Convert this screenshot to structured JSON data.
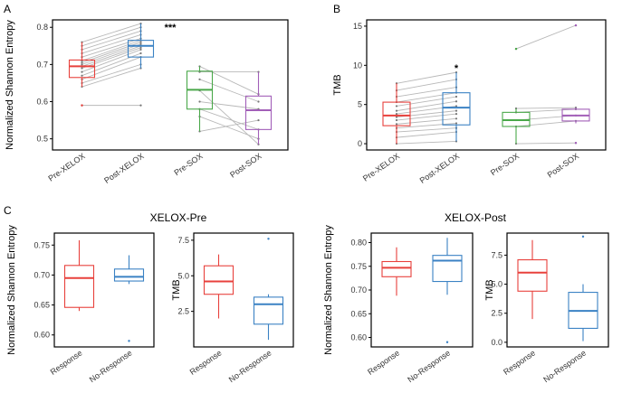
{
  "panel_letters": {
    "a": "A",
    "b": "B",
    "c": "C"
  },
  "colors": {
    "pre_xelox": "#e8413c",
    "post_xelox": "#3b82c4",
    "pre_sox": "#4aa84a",
    "post_sox": "#a25fb8",
    "pair_line": "#b8b8b8",
    "point": "#777777"
  },
  "chart_data": [
    {
      "type": "box",
      "panel": "A",
      "ylabel": "Normalized Shannon Entropy",
      "ylim": [
        0.47,
        0.82
      ],
      "yticks": [
        0.5,
        0.6,
        0.7,
        0.8
      ],
      "categories": [
        "Pre-XELOX",
        "Post-XELOX",
        "Pre-SOX",
        "Post-SOX"
      ],
      "boxes": [
        {
          "min": 0.64,
          "q1": 0.665,
          "median": 0.695,
          "q3": 0.712,
          "max": 0.76,
          "outliers": [
            0.59
          ]
        },
        {
          "min": 0.69,
          "q1": 0.72,
          "median": 0.75,
          "q3": 0.765,
          "max": 0.81,
          "outliers": []
        },
        {
          "min": 0.52,
          "q1": 0.58,
          "median": 0.632,
          "q3": 0.682,
          "max": 0.695,
          "outliers": []
        },
        {
          "min": 0.485,
          "q1": 0.525,
          "median": 0.577,
          "q3": 0.615,
          "max": 0.68,
          "outliers": []
        }
      ],
      "pairs": [
        {
          "from": 0,
          "to": 1,
          "values": [
            [
              0.64,
              0.69
            ],
            [
              0.65,
              0.7
            ],
            [
              0.66,
              0.72
            ],
            [
              0.67,
              0.73
            ],
            [
              0.68,
              0.74
            ],
            [
              0.69,
              0.745
            ],
            [
              0.695,
              0.75
            ],
            [
              0.7,
              0.755
            ],
            [
              0.705,
              0.76
            ],
            [
              0.71,
              0.765
            ],
            [
              0.72,
              0.77
            ],
            [
              0.73,
              0.78
            ],
            [
              0.74,
              0.79
            ],
            [
              0.75,
              0.8
            ],
            [
              0.76,
              0.81
            ],
            [
              0.59,
              0.59
            ]
          ]
        },
        {
          "from": 2,
          "to": 3,
          "values": [
            [
              0.52,
              0.55
            ],
            [
              0.56,
              0.5
            ],
            [
              0.6,
              0.58
            ],
            [
              0.63,
              0.485
            ],
            [
              0.66,
              0.6
            ],
            [
              0.68,
              0.68
            ],
            [
              0.695,
              0.62
            ],
            [
              0.58,
              0.525
            ]
          ]
        }
      ],
      "significance": {
        "label": "***",
        "x": 1.5,
        "y": 0.8
      }
    },
    {
      "type": "box",
      "panel": "B",
      "ylabel": "TMB",
      "ylim": [
        -0.8,
        15.8
      ],
      "yticks": [
        0,
        5,
        10,
        15
      ],
      "categories": [
        "Pre-XELOX",
        "Post-XELOX",
        "Pre-SOX",
        "Post-SOX"
      ],
      "boxes": [
        {
          "min": 0.0,
          "q1": 2.3,
          "median": 3.6,
          "q3": 5.3,
          "max": 7.7,
          "outliers": []
        },
        {
          "min": 0.3,
          "q1": 2.4,
          "median": 4.6,
          "q3": 6.5,
          "max": 9.1,
          "outliers": []
        },
        {
          "min": 0.0,
          "q1": 2.2,
          "median": 3.0,
          "q3": 4.0,
          "max": 4.5,
          "outliers": [
            12.1
          ]
        },
        {
          "min": 2.6,
          "q1": 2.9,
          "median": 3.6,
          "q3": 4.4,
          "max": 4.6,
          "outliers": [
            15.1,
            0.1
          ]
        }
      ],
      "pairs": [
        {
          "from": 0,
          "to": 1,
          "values": [
            [
              0.0,
              0.3
            ],
            [
              0.8,
              1.5
            ],
            [
              1.5,
              2.0
            ],
            [
              2.0,
              2.6
            ],
            [
              2.5,
              3.2
            ],
            [
              3.0,
              3.8
            ],
            [
              3.4,
              4.2
            ],
            [
              3.8,
              4.8
            ],
            [
              4.2,
              5.4
            ],
            [
              4.8,
              6.0
            ],
            [
              5.3,
              6.5
            ],
            [
              6.0,
              7.2
            ],
            [
              6.8,
              8.2
            ],
            [
              7.7,
              9.1
            ]
          ]
        },
        {
          "from": 2,
          "to": 3,
          "values": [
            [
              0.0,
              0.1
            ],
            [
              2.2,
              2.9
            ],
            [
              3.0,
              3.6
            ],
            [
              4.0,
              4.4
            ],
            [
              4.5,
              4.6
            ],
            [
              12.1,
              15.1
            ]
          ]
        }
      ],
      "significance": {
        "label": "*",
        "x": 1,
        "y": 9.7
      }
    },
    {
      "type": "box",
      "panel": "C",
      "title": "XELOX-Pre",
      "ylabel": "Normalized Shannon Entropy",
      "ylim": [
        0.58,
        0.77
      ],
      "yticks": [
        0.6,
        0.65,
        0.7,
        0.75
      ],
      "ytick_labels": [
        "0.60",
        "0.65",
        "0.70",
        "0.75"
      ],
      "categories": [
        "Response",
        "No-Response"
      ],
      "boxes": [
        {
          "min": 0.64,
          "q1": 0.646,
          "median": 0.695,
          "q3": 0.716,
          "max": 0.758,
          "outliers": []
        },
        {
          "min": 0.685,
          "q1": 0.69,
          "median": 0.697,
          "q3": 0.71,
          "max": 0.733,
          "outliers": [
            0.59
          ]
        }
      ]
    },
    {
      "type": "box",
      "panel": "C",
      "ylabel": "TMB",
      "ylim": [
        0.0,
        8.0
      ],
      "yticks": [
        2.5,
        5.0,
        7.5
      ],
      "ytick_labels": [
        "2.5",
        "5.0",
        "7.5"
      ],
      "categories": [
        "Response",
        "No-Response"
      ],
      "boxes": [
        {
          "min": 2.0,
          "q1": 3.7,
          "median": 4.6,
          "q3": 5.7,
          "max": 6.5,
          "outliers": []
        },
        {
          "min": 0.5,
          "q1": 1.6,
          "median": 3.0,
          "q3": 3.5,
          "max": 3.7,
          "outliers": [
            7.6
          ]
        }
      ]
    },
    {
      "type": "box",
      "panel": "C",
      "title": "XELOX-Post",
      "ylabel": "Normalized Shannon Entropy",
      "ylim": [
        0.58,
        0.82
      ],
      "yticks": [
        0.6,
        0.65,
        0.7,
        0.75,
        0.8
      ],
      "ytick_labels": [
        "0.60",
        "0.65",
        "0.70",
        "0.75",
        "0.80"
      ],
      "categories": [
        "Response",
        "No-Response"
      ],
      "boxes": [
        {
          "min": 0.688,
          "q1": 0.728,
          "median": 0.747,
          "q3": 0.76,
          "max": 0.79,
          "outliers": []
        },
        {
          "min": 0.69,
          "q1": 0.718,
          "median": 0.762,
          "q3": 0.773,
          "max": 0.81,
          "outliers": [
            0.59
          ]
        }
      ]
    },
    {
      "type": "box",
      "panel": "C",
      "ylabel": "TMB",
      "ylim": [
        -0.4,
        9.4
      ],
      "yticks": [
        0.0,
        2.5,
        5.0,
        7.5
      ],
      "ytick_labels": [
        "0.0",
        "2.5",
        "5.0",
        "7.5"
      ],
      "categories": [
        "Response",
        "No-Response"
      ],
      "boxes": [
        {
          "min": 2.0,
          "q1": 4.4,
          "median": 6.0,
          "q3": 7.1,
          "max": 8.8,
          "outliers": []
        },
        {
          "min": 0.1,
          "q1": 1.2,
          "median": 2.7,
          "q3": 4.3,
          "max": 5.0,
          "outliers": [
            9.1
          ]
        }
      ]
    }
  ]
}
